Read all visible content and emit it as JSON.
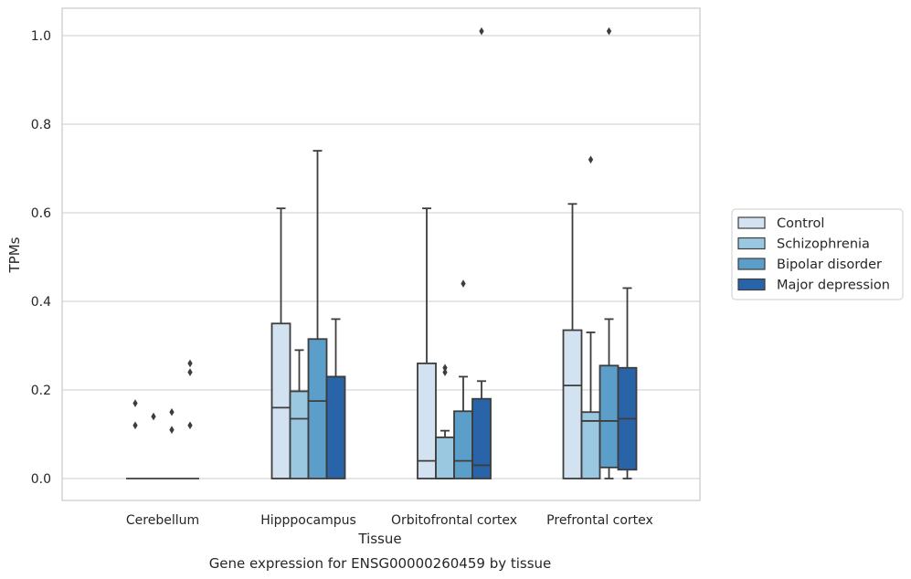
{
  "chart_data": {
    "type": "box",
    "title": "Gene expression for ENSG00000260459 by tissue",
    "xlabel": "Tissue",
    "ylabel": "TPMs",
    "ylim": [
      -0.05,
      1.06
    ],
    "yticks": [
      0.0,
      0.2,
      0.4,
      0.6,
      0.8,
      1.0
    ],
    "ytick_labels": [
      "0.0",
      "0.2",
      "0.4",
      "0.6",
      "0.8",
      "1.0"
    ],
    "grid": true,
    "legend_position": "right",
    "categories": [
      "Cerebellum",
      "Hipppocampus",
      "Orbitofrontal cortex",
      "Prefrontal cortex"
    ],
    "series": [
      {
        "name": "Control",
        "color": "#d2e2f1",
        "boxes": [
          {
            "q1": 0.0,
            "median": 0.0,
            "q3": 0.0,
            "whislo": 0.0,
            "whishi": 0.0,
            "fliers": [
              0.17,
              0.12
            ]
          },
          {
            "q1": 0.0,
            "median": 0.16,
            "q3": 0.35,
            "whislo": 0.0,
            "whishi": 0.61,
            "fliers": []
          },
          {
            "q1": 0.0,
            "median": 0.04,
            "q3": 0.26,
            "whislo": 0.0,
            "whishi": 0.61,
            "fliers": []
          },
          {
            "q1": 0.0,
            "median": 0.21,
            "q3": 0.335,
            "whislo": 0.0,
            "whishi": 0.62,
            "fliers": []
          }
        ]
      },
      {
        "name": "Schizophrenia",
        "color": "#9ac8e0",
        "boxes": [
          {
            "q1": 0.0,
            "median": 0.0,
            "q3": 0.0,
            "whislo": 0.0,
            "whishi": 0.0,
            "fliers": [
              0.14
            ]
          },
          {
            "q1": 0.0,
            "median": 0.135,
            "q3": 0.197,
            "whislo": 0.0,
            "whishi": 0.29,
            "fliers": []
          },
          {
            "q1": 0.0,
            "median": 0.0,
            "q3": 0.093,
            "whislo": 0.0,
            "whishi": 0.108,
            "fliers": [
              0.25,
              0.24
            ]
          },
          {
            "q1": 0.0,
            "median": 0.13,
            "q3": 0.15,
            "whislo": 0.0,
            "whishi": 0.33,
            "fliers": [
              0.72
            ]
          }
        ]
      },
      {
        "name": "Bipolar disorder",
        "color": "#5a9ec9",
        "boxes": [
          {
            "q1": 0.0,
            "median": 0.0,
            "q3": 0.0,
            "whislo": 0.0,
            "whishi": 0.0,
            "fliers": [
              0.15,
              0.11
            ]
          },
          {
            "q1": 0.0,
            "median": 0.175,
            "q3": 0.315,
            "whislo": 0.0,
            "whishi": 0.74,
            "fliers": []
          },
          {
            "q1": 0.0,
            "median": 0.04,
            "q3": 0.152,
            "whislo": 0.0,
            "whishi": 0.23,
            "fliers": [
              0.44
            ]
          },
          {
            "q1": 0.025,
            "median": 0.13,
            "q3": 0.255,
            "whislo": 0.0,
            "whishi": 0.36,
            "fliers": [
              1.01
            ]
          }
        ]
      },
      {
        "name": "Major depression",
        "color": "#2964a8",
        "boxes": [
          {
            "q1": 0.0,
            "median": 0.0,
            "q3": 0.0,
            "whislo": 0.0,
            "whishi": 0.0,
            "fliers": [
              0.26,
              0.24,
              0.12
            ]
          },
          {
            "q1": 0.0,
            "median": 0.23,
            "q3": 0.23,
            "whislo": 0.0,
            "whishi": 0.36,
            "fliers": []
          },
          {
            "q1": 0.0,
            "median": 0.03,
            "q3": 0.18,
            "whislo": 0.0,
            "whishi": 0.22,
            "fliers": [
              1.01
            ]
          },
          {
            "q1": 0.02,
            "median": 0.135,
            "q3": 0.25,
            "whislo": 0.0,
            "whishi": 0.43,
            "fliers": []
          }
        ]
      }
    ]
  }
}
